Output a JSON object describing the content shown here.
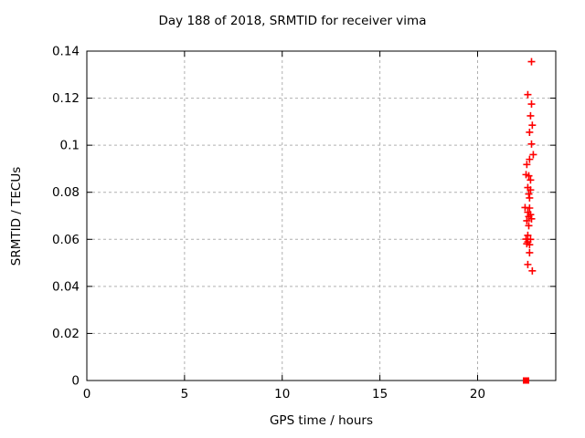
{
  "chart_data": {
    "type": "scatter",
    "title": "Day 188 of 2018, SRMTID for receiver vima",
    "xlabel": "GPS time / hours",
    "ylabel": "SRMTID / TECUs",
    "xlim": [
      0,
      24
    ],
    "ylim": [
      0,
      0.14
    ],
    "xticks": [
      0,
      5,
      10,
      15,
      20
    ],
    "xtick_labels": [
      "0",
      "5",
      "10",
      "15",
      "20"
    ],
    "yticks": [
      0,
      0.02,
      0.04,
      0.06,
      0.08,
      0.1,
      0.12,
      0.14
    ],
    "ytick_labels": [
      "0",
      "0.02",
      "0.04",
      "0.06",
      "0.08",
      "0.1",
      "0.12",
      "0.14"
    ],
    "grid": true,
    "legend_position": "none",
    "colors": {
      "points": "#ff0000",
      "grid": "#b0b0b0",
      "axis": "#000000",
      "text": "#000000",
      "background": "#ffffff"
    },
    "series": [
      {
        "name": "SRMTID",
        "marker": "plus",
        "color": "#ff0000",
        "points": [
          [
            22.76,
            0.1355
          ],
          [
            22.57,
            0.1215
          ],
          [
            22.76,
            0.1175
          ],
          [
            22.71,
            0.1125
          ],
          [
            22.8,
            0.1085
          ],
          [
            22.66,
            0.1055
          ],
          [
            22.76,
            0.1005
          ],
          [
            22.85,
            0.096
          ],
          [
            22.66,
            0.094
          ],
          [
            22.52,
            0.0918
          ],
          [
            22.48,
            0.0875
          ],
          [
            22.62,
            0.087
          ],
          [
            22.71,
            0.0852
          ],
          [
            22.57,
            0.082
          ],
          [
            22.71,
            0.081
          ],
          [
            22.62,
            0.0793
          ],
          [
            22.66,
            0.0776
          ],
          [
            22.43,
            0.0735
          ],
          [
            22.66,
            0.0733
          ],
          [
            22.57,
            0.0715
          ],
          [
            22.71,
            0.0705
          ],
          [
            22.62,
            0.0697
          ],
          [
            22.76,
            0.0687
          ],
          [
            22.52,
            0.0679
          ],
          [
            22.62,
            0.0658
          ],
          [
            22.57,
            0.0617
          ],
          [
            22.48,
            0.0601
          ],
          [
            22.71,
            0.06
          ],
          [
            22.57,
            0.0589
          ],
          [
            22.52,
            0.0581
          ],
          [
            22.66,
            0.0577
          ],
          [
            22.66,
            0.0543
          ],
          [
            22.57,
            0.0493
          ],
          [
            22.8,
            0.0466
          ]
        ]
      },
      {
        "name": "zero-marker",
        "marker": "filled-square",
        "color": "#ff0000",
        "points": [
          [
            22.48,
            0.0
          ]
        ]
      }
    ]
  }
}
